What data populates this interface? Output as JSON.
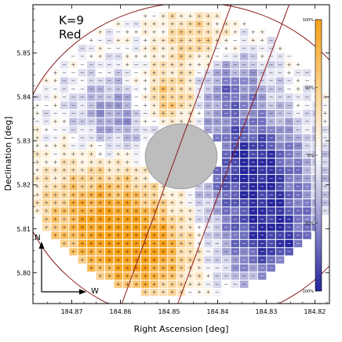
{
  "panel": {
    "k_label": "K=9",
    "band_label": "Red"
  },
  "compass": {
    "north": "N",
    "west": "W"
  },
  "colors": {
    "positive": "#f6a119",
    "neutral": "#ffffff",
    "negative": "#24249b",
    "circle": "#8b1a1a",
    "mask": "#bdbdbd",
    "frame": "#000000"
  },
  "chart_data": {
    "type": "heatmap",
    "title": "",
    "xlabel": "Right Ascension [deg]",
    "ylabel": "Declination [deg]",
    "xlim": [
      184.878,
      184.817
    ],
    "ylim": [
      5.793,
      5.861
    ],
    "x_reversed": true,
    "x_ticks": [
      {
        "value": 184.87,
        "label": "184.87"
      },
      {
        "value": 184.86,
        "label": "184.86"
      },
      {
        "value": 184.85,
        "label": "184.85"
      },
      {
        "value": 184.84,
        "label": "184.84"
      },
      {
        "value": 184.83,
        "label": "184.83"
      },
      {
        "value": 184.82,
        "label": "184.82"
      }
    ],
    "y_ticks": [
      {
        "value": 5.8,
        "label": "5.80"
      },
      {
        "value": 5.81,
        "label": "5.81"
      },
      {
        "value": 5.82,
        "label": "5.82"
      },
      {
        "value": 5.83,
        "label": "5.83"
      },
      {
        "value": 5.84,
        "label": "5.84"
      },
      {
        "value": 5.85,
        "label": "5.85"
      }
    ],
    "colorbar": {
      "range": [
        -100,
        100
      ],
      "ticks": [
        {
          "value": 100,
          "label": "100%"
        },
        {
          "value": 50,
          "label": "50%"
        },
        {
          "value": 0,
          "label": "0%"
        },
        {
          "value": -50,
          "label": "-50%"
        },
        {
          "value": -100,
          "label": "-100%"
        }
      ]
    },
    "grid": {
      "center_ra": 184.8475,
      "center_dec": 5.827,
      "radius_deg": 0.0325,
      "cell_deg": 0.00185,
      "masked_center_ra": 184.8475,
      "masked_center_dec": 5.8265,
      "masked_radius_deg": 0.0074,
      "note": "cells colored by fractional excess (%), positive = orange with '+', negative = blue with '-'"
    },
    "field_boundary": {
      "circle_center_ra": 184.845,
      "circle_center_dec": 5.825,
      "circle_radius_deg": 0.0365,
      "chords": [
        {
          "from": [
            184.8372,
            5.861
          ],
          "to": [
            184.8597,
            5.793
          ]
        },
        {
          "from": [
            184.8253,
            5.861
          ],
          "to": [
            184.8482,
            5.793
          ]
        }
      ]
    },
    "pattern": [
      {
        "ra": 184.864,
        "dec": 5.812,
        "r": 0.013,
        "amp": 90
      },
      {
        "ra": 184.8545,
        "dec": 5.804,
        "r": 0.0095,
        "amp": 80
      },
      {
        "ra": 184.85,
        "dec": 5.8395,
        "r": 0.007,
        "amp": 75
      },
      {
        "ra": 184.833,
        "dec": 5.825,
        "r": 0.011,
        "amp": -95
      },
      {
        "ra": 184.829,
        "dec": 5.808,
        "r": 0.011,
        "amp": -90
      },
      {
        "ra": 184.838,
        "dec": 5.842,
        "r": 0.008,
        "amp": -60
      },
      {
        "ra": 184.86,
        "dec": 5.836,
        "r": 0.009,
        "amp": -55
      },
      {
        "ra": 184.845,
        "dec": 5.853,
        "r": 0.007,
        "amp": 50
      }
    ]
  }
}
